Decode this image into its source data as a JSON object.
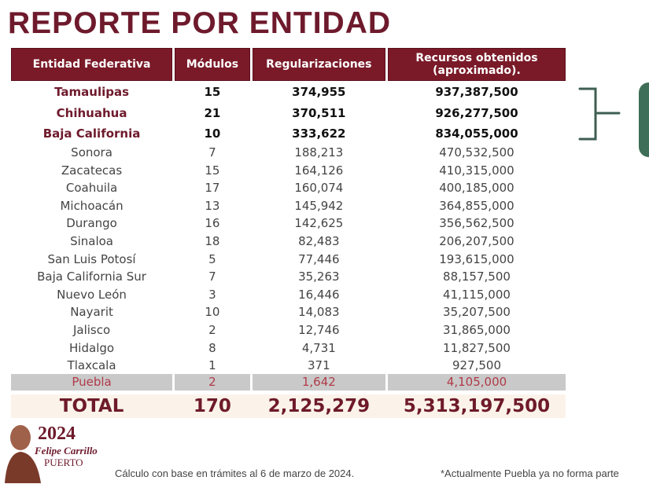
{
  "title": "REPORTE POR ENTIDAD",
  "headers": [
    "Entidad Federativa",
    "Módulos",
    "Regularizaciones",
    "Recursos obtenidos (aproximado)."
  ],
  "top_rows": [
    [
      "Tamaulipas",
      "15",
      "374,955",
      "937,387,500"
    ],
    [
      "Chihuahua",
      "21",
      "370,511",
      "926,277,500"
    ],
    [
      "Baja California",
      "10",
      "333,622",
      "834,055,000"
    ]
  ],
  "rows": [
    [
      "Sonora",
      "7",
      "188,213",
      "470,532,500"
    ],
    [
      "Zacatecas",
      "15",
      "164,126",
      "410,315,000"
    ],
    [
      "Coahuila",
      "17",
      "160,074",
      "400,185,000"
    ],
    [
      "Michoacán",
      "13",
      "145,942",
      "364,855,000"
    ],
    [
      "Durango",
      "16",
      "142,625",
      "356,562,500"
    ],
    [
      "Sinaloa",
      "18",
      "82,483",
      "206,207,500"
    ],
    [
      "San Luis Potosí",
      "5",
      "77,446",
      "193,615,000"
    ],
    [
      "Baja California Sur",
      "7",
      "35,263",
      "88,157,500"
    ],
    [
      "Nuevo León",
      "3",
      "16,446",
      "41,115,000"
    ],
    [
      "Nayarit",
      "10",
      "14,083",
      "35,207,500"
    ],
    [
      "Jalisco",
      "2",
      "12,746",
      "31,865,000"
    ],
    [
      "Hidalgo",
      "8",
      "4,731",
      "11,827,500"
    ],
    [
      "Tlaxcala",
      "1",
      "371",
      "927,500"
    ]
  ],
  "puebla": [
    "Puebla",
    "2",
    "1,642",
    "4,105,000"
  ],
  "total": [
    "TOTAL",
    "170",
    "2,125,279",
    "5,313,197,500"
  ],
  "logo": {
    "year": "2024",
    "name": "Felipe Carrillo",
    "surname": "PUERTO"
  },
  "footer": {
    "note": "Cálculo con base en trámites al 6 de marzo de 2024.",
    "puebla_note": "*Actualmente Puebla ya no forma parte"
  },
  "colors": {
    "header": "#7a1a28",
    "title": "#6e1a2c",
    "brace": "#3e5e50"
  }
}
